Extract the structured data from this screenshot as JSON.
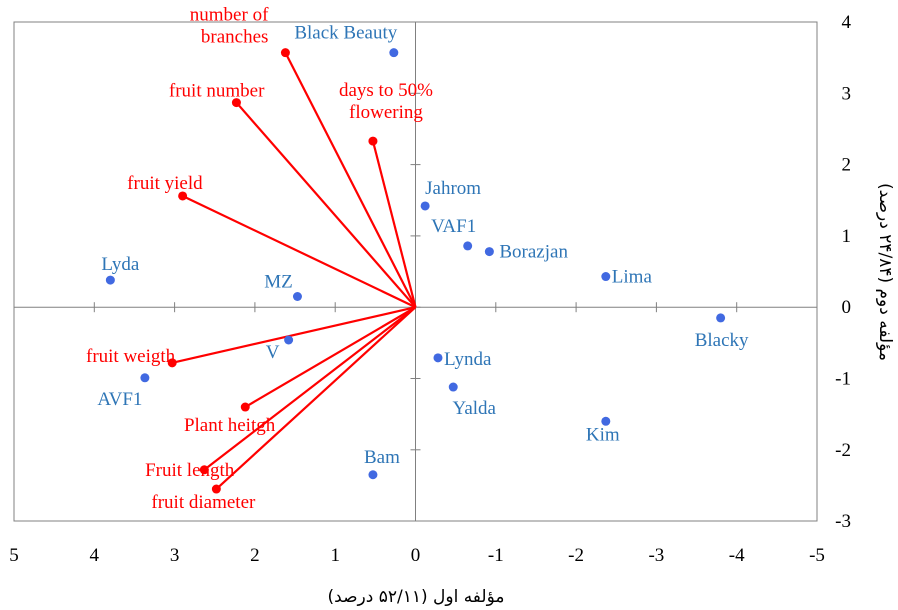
{
  "chart_data": {
    "type": "scatter",
    "title": "",
    "xlabel": "مؤلفه اول (۵۲/۱۱ درصد)",
    "ylabel": "مؤلفه دوم (۲۴/۸۴ درصد)",
    "xlim": [
      5,
      -5
    ],
    "ylim": [
      -3,
      4
    ],
    "x_reversed": true,
    "xticks": [
      5,
      4,
      3,
      2,
      1,
      0,
      -1,
      -2,
      -3,
      -4,
      -5
    ],
    "yticks": [
      4,
      3,
      2,
      1,
      0,
      -1,
      -2,
      -3
    ],
    "grid": false,
    "colors": {
      "cultivars": "#4169e1",
      "cultivar_labels": "#2e75b6",
      "traits": "#ff0000"
    },
    "cultivars": [
      {
        "name": "Black Beauty",
        "x": 0.27,
        "y": 3.57
      },
      {
        "name": "Jahrom",
        "x": -0.12,
        "y": 1.42
      },
      {
        "name": "VAF1",
        "x": -0.65,
        "y": 0.86
      },
      {
        "name": "Borazjan",
        "x": -0.92,
        "y": 0.78
      },
      {
        "name": "Lima",
        "x": -2.37,
        "y": 0.43
      },
      {
        "name": "Lyda",
        "x": 3.8,
        "y": 0.38
      },
      {
        "name": "MZ",
        "x": 1.47,
        "y": 0.15
      },
      {
        "name": "Blacky",
        "x": -3.8,
        "y": -0.15
      },
      {
        "name": "V",
        "x": 1.58,
        "y": -0.46
      },
      {
        "name": "Lynda",
        "x": -0.28,
        "y": -0.71
      },
      {
        "name": "AVF1",
        "x": 3.37,
        "y": -0.99
      },
      {
        "name": "Yalda",
        "x": -0.47,
        "y": -1.12
      },
      {
        "name": "Kim",
        "x": -2.37,
        "y": -1.6
      },
      {
        "name": "Bam",
        "x": 0.53,
        "y": -2.35
      }
    ],
    "traits": [
      {
        "name": "number of branches",
        "lines": [
          "number of",
          "branches"
        ],
        "x": 1.62,
        "y": 3.57
      },
      {
        "name": "fruit number",
        "lines": [
          "fruit number"
        ],
        "x": 2.23,
        "y": 2.87
      },
      {
        "name": "days to 50% flowering",
        "lines": [
          "days to 50%",
          "flowering"
        ],
        "x": 0.53,
        "y": 2.33
      },
      {
        "name": "fruit yield",
        "lines": [
          "fruit yield"
        ],
        "x": 2.9,
        "y": 1.56
      },
      {
        "name": "fruit weigth",
        "lines": [
          "fruit weigth"
        ],
        "x": 3.03,
        "y": -0.78
      },
      {
        "name": "Plant heitgh",
        "lines": [
          "Plant heitgh"
        ],
        "x": 2.12,
        "y": -1.4
      },
      {
        "name": "Fruit length",
        "lines": [
          "Fruit length"
        ],
        "x": 2.63,
        "y": -2.28
      },
      {
        "name": "fruit diameter",
        "lines": [
          "fruit diameter"
        ],
        "x": 2.48,
        "y": -2.55
      }
    ]
  }
}
